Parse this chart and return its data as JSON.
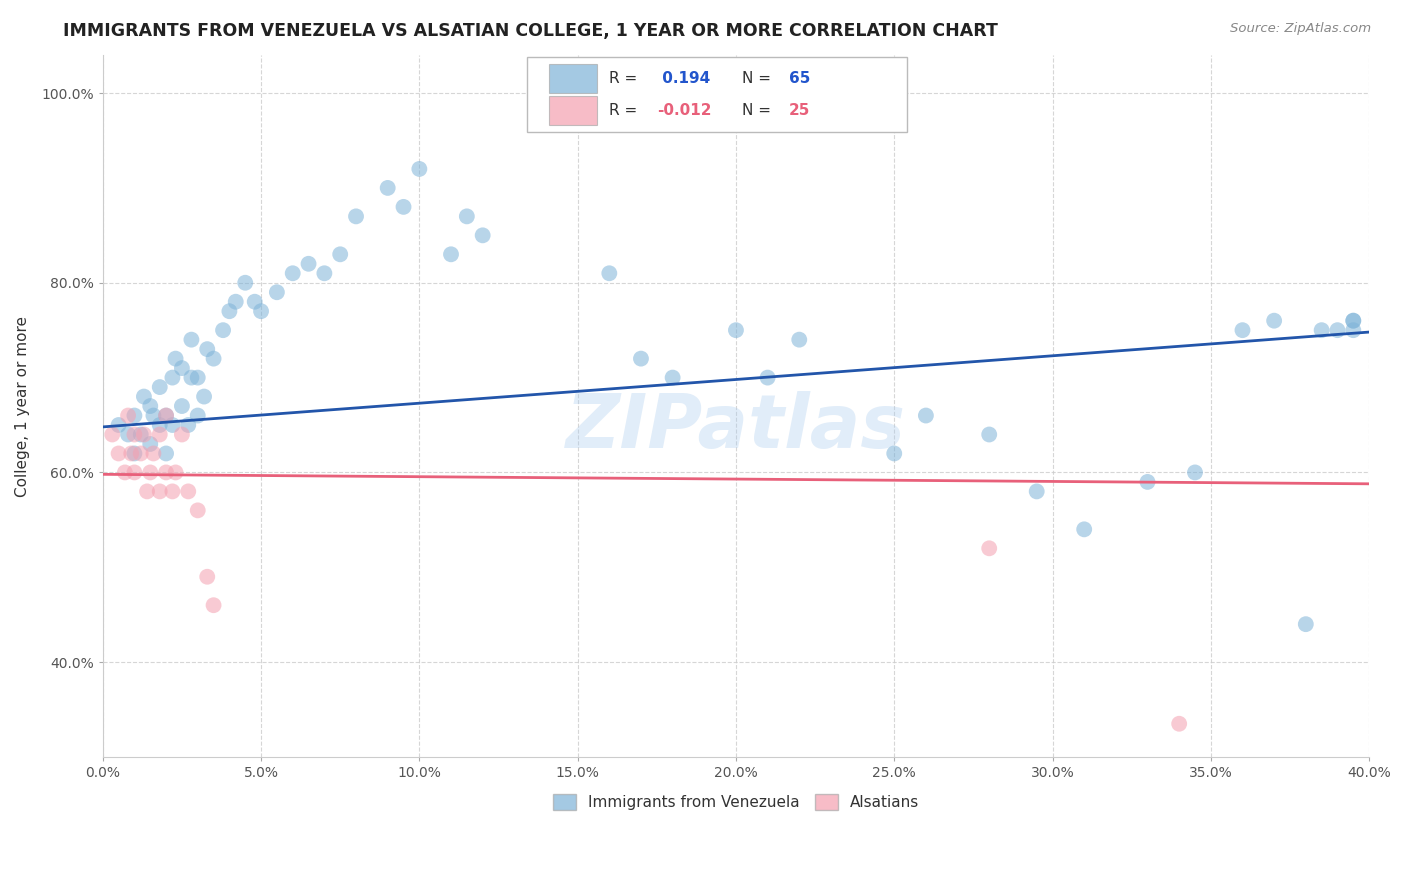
{
  "title": "IMMIGRANTS FROM VENEZUELA VS ALSATIAN COLLEGE, 1 YEAR OR MORE CORRELATION CHART",
  "source": "Source: ZipAtlas.com",
  "ylabel": "College, 1 year or more",
  "xmin": 0.0,
  "xmax": 0.4,
  "ymin": 0.3,
  "ymax": 1.04,
  "watermark": "ZIPatlas",
  "blue_color": "#7EB3D8",
  "pink_color": "#F4A0B0",
  "blue_line_color": "#2255AA",
  "pink_line_color": "#E8607A",
  "blue_line_y0": 0.648,
  "blue_line_y1": 0.748,
  "pink_line_y0": 0.598,
  "pink_line_y1": 0.588,
  "blue_scatter_x": [
    0.005,
    0.008,
    0.01,
    0.01,
    0.012,
    0.013,
    0.015,
    0.015,
    0.016,
    0.018,
    0.018,
    0.02,
    0.02,
    0.022,
    0.022,
    0.023,
    0.025,
    0.025,
    0.027,
    0.028,
    0.028,
    0.03,
    0.03,
    0.032,
    0.033,
    0.035,
    0.038,
    0.04,
    0.042,
    0.045,
    0.048,
    0.05,
    0.055,
    0.06,
    0.065,
    0.07,
    0.075,
    0.08,
    0.09,
    0.095,
    0.1,
    0.11,
    0.115,
    0.12,
    0.16,
    0.17,
    0.18,
    0.2,
    0.21,
    0.22,
    0.25,
    0.26,
    0.28,
    0.295,
    0.31,
    0.33,
    0.345,
    0.36,
    0.37,
    0.38,
    0.385,
    0.39,
    0.395,
    0.395,
    0.395
  ],
  "blue_scatter_y": [
    0.65,
    0.64,
    0.62,
    0.66,
    0.64,
    0.68,
    0.63,
    0.67,
    0.66,
    0.65,
    0.69,
    0.62,
    0.66,
    0.65,
    0.7,
    0.72,
    0.67,
    0.71,
    0.65,
    0.7,
    0.74,
    0.66,
    0.7,
    0.68,
    0.73,
    0.72,
    0.75,
    0.77,
    0.78,
    0.8,
    0.78,
    0.77,
    0.79,
    0.81,
    0.82,
    0.81,
    0.83,
    0.87,
    0.9,
    0.88,
    0.92,
    0.83,
    0.87,
    0.85,
    0.81,
    0.72,
    0.7,
    0.75,
    0.7,
    0.74,
    0.62,
    0.66,
    0.64,
    0.58,
    0.54,
    0.59,
    0.6,
    0.75,
    0.76,
    0.44,
    0.75,
    0.75,
    0.76,
    0.76,
    0.75
  ],
  "pink_scatter_x": [
    0.003,
    0.005,
    0.007,
    0.008,
    0.009,
    0.01,
    0.01,
    0.012,
    0.013,
    0.014,
    0.015,
    0.016,
    0.018,
    0.018,
    0.02,
    0.02,
    0.022,
    0.023,
    0.025,
    0.027,
    0.03,
    0.033,
    0.035,
    0.28,
    0.34
  ],
  "pink_scatter_y": [
    0.64,
    0.62,
    0.6,
    0.66,
    0.62,
    0.64,
    0.6,
    0.62,
    0.64,
    0.58,
    0.6,
    0.62,
    0.58,
    0.64,
    0.6,
    0.66,
    0.58,
    0.6,
    0.64,
    0.58,
    0.56,
    0.49,
    0.46,
    0.52,
    0.335
  ]
}
